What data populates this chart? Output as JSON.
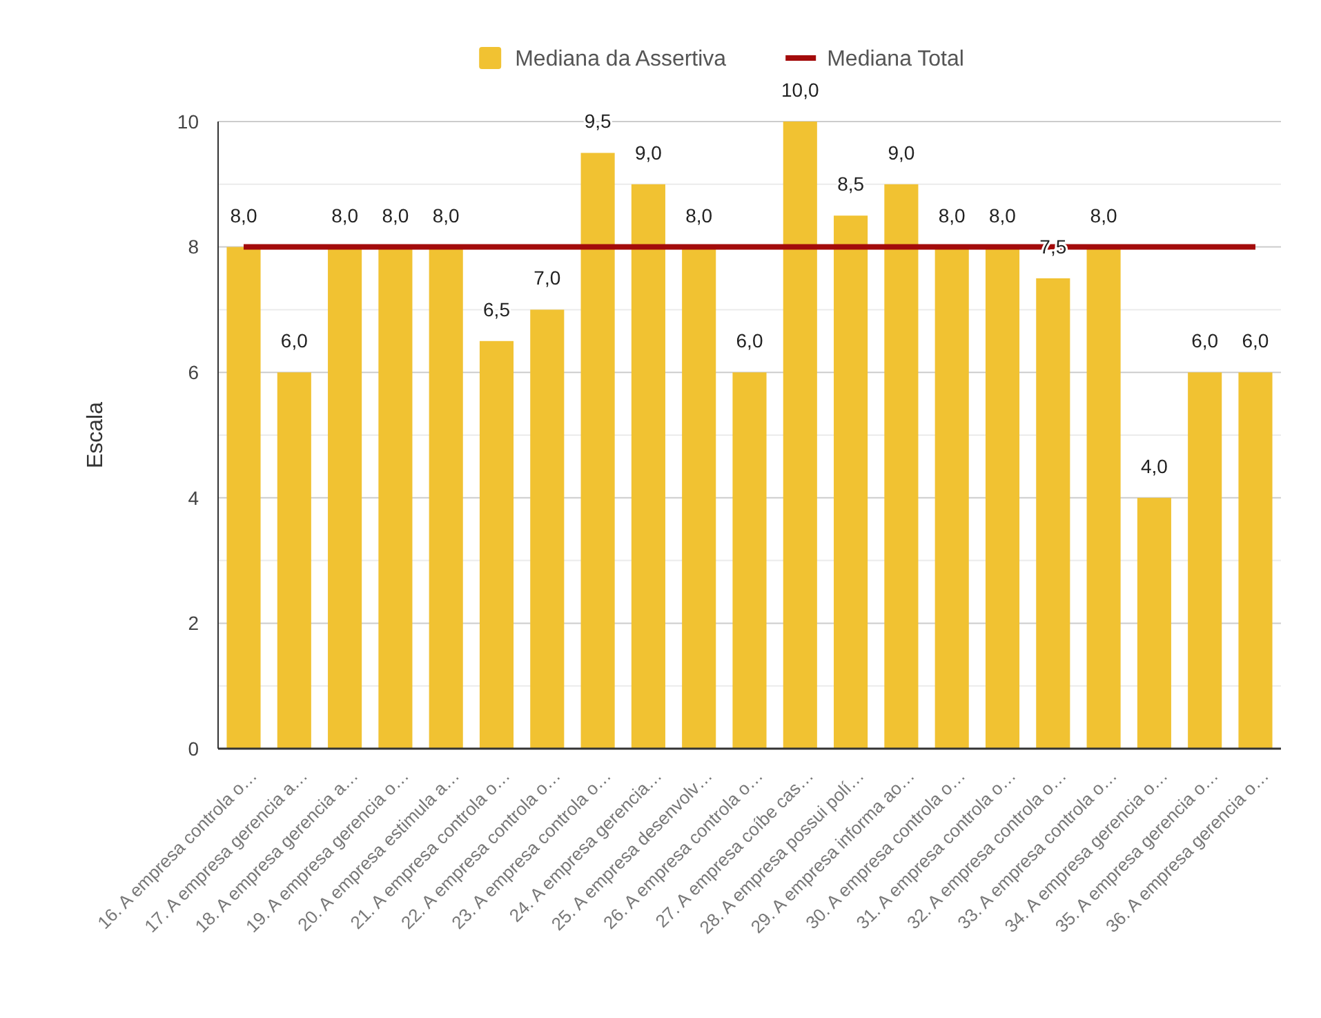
{
  "chart_data": {
    "type": "bar",
    "ylabel": "Escala",
    "categories": [
      "16. A empresa controla o…",
      "17. A empresa gerencia a…",
      "18. A empresa gerencia a…",
      "19. A empresa gerencia o…",
      "20. A empresa estimula a…",
      "21. A empresa controla o…",
      "22. A empresa controla o…",
      "23. A empresa controla o…",
      "24. A empresa gerencia…",
      "25. A empresa desenvolv…",
      "26. A empresa controla o…",
      "27. A empresa coíbe cas…",
      "28. A empresa possui polí…",
      "29. A empresa informa ao…",
      "30. A empresa controla o…",
      "31. A empresa controla o…",
      "32. A empresa controla o…",
      "33. A empresa controla o…",
      "34. A empresa gerencia o…",
      "35. A empresa gerencia o…",
      "36. A empresa gerencia o…"
    ],
    "series": [
      {
        "name": "Mediana da Assertiva",
        "color": "#f1c232",
        "values": [
          8,
          6,
          8,
          8,
          8,
          6.5,
          7,
          9.5,
          9,
          8,
          6,
          10,
          8.5,
          9,
          8,
          8,
          7.5,
          8,
          4,
          6,
          6
        ],
        "value_labels": [
          "8,0",
          "6,0",
          "8,0",
          "8,0",
          "8,0",
          "6,5",
          "7,0",
          "9,5",
          "9,0",
          "8,0",
          "6,0",
          "10,0",
          "8,5",
          "9,0",
          "8,0",
          "8,0",
          "7,5",
          "8,0",
          "4,0",
          "6,0",
          "6,0"
        ]
      },
      {
        "name": "Mediana Total",
        "type": "line",
        "color": "#a30b0b",
        "values": [
          8,
          8,
          8,
          8,
          8,
          8,
          8,
          8,
          8,
          8,
          8,
          8,
          8,
          8,
          8,
          8,
          8,
          8,
          8,
          8,
          8
        ]
      }
    ],
    "ylim": [
      0,
      10
    ],
    "yticks": [
      0,
      {
        "value": 1,
        "label": null
      },
      2,
      {
        "value": 3,
        "label": null
      },
      4,
      {
        "value": 5,
        "label": null
      },
      6,
      {
        "value": 7,
        "label": null
      },
      8,
      {
        "value": 9,
        "label": null
      },
      10
    ],
    "grid": true,
    "legend": "top"
  }
}
